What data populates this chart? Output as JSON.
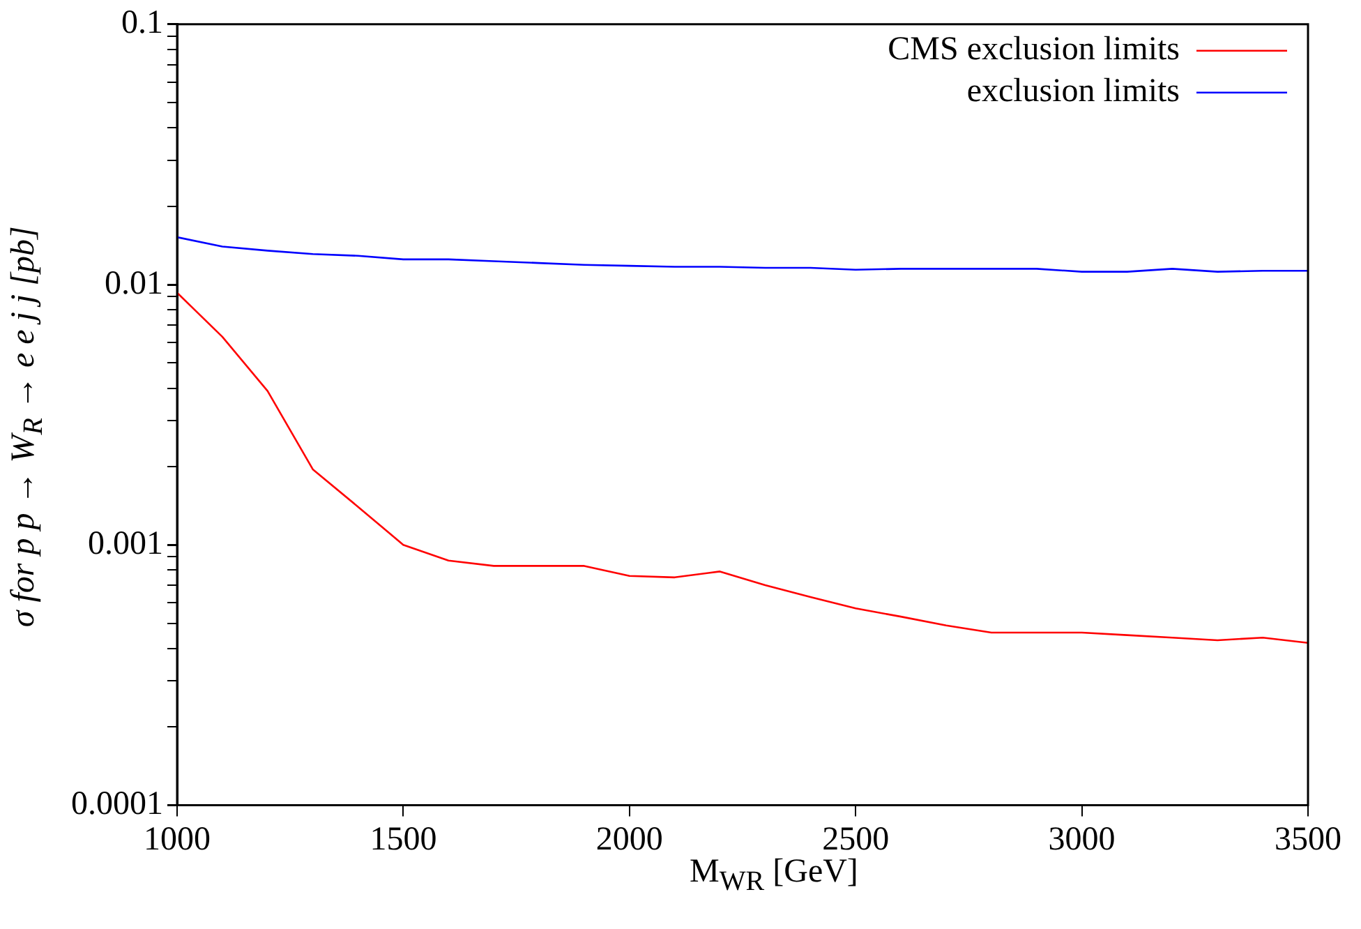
{
  "chart_data": {
    "type": "line",
    "xlabel": "M$_{W}$$_{R}$ [GeV]",
    "ylabel": "σ for p p → W$_{R}$ → e e j j [pb]",
    "x": [
      1000,
      1100,
      1200,
      1300,
      1400,
      1500,
      1600,
      1700,
      1800,
      1900,
      2000,
      2100,
      2200,
      2300,
      2400,
      2500,
      2600,
      2700,
      2800,
      2900,
      3000,
      3100,
      3200,
      3300,
      3400,
      3500
    ],
    "series": [
      {
        "name": "CMS exclusion limits",
        "color": "#ff0000",
        "values": [
          0.0093,
          0.0063,
          0.0039,
          0.00195,
          0.0014,
          0.001,
          0.00087,
          0.00083,
          0.00083,
          0.00083,
          0.00076,
          0.00075,
          0.00079,
          0.0007,
          0.00063,
          0.00057,
          0.00053,
          0.00049,
          0.00046,
          0.00046,
          0.00046,
          0.00045,
          0.00044,
          0.00043,
          0.00044,
          0.00042
        ]
      },
      {
        "name": "exclusion limits",
        "color": "#0000ff",
        "values": [
          0.0152,
          0.014,
          0.0135,
          0.0131,
          0.0129,
          0.0125,
          0.0125,
          0.0123,
          0.0121,
          0.0119,
          0.0118,
          0.0117,
          0.0117,
          0.0116,
          0.0116,
          0.0114,
          0.0115,
          0.0115,
          0.0115,
          0.0115,
          0.0112,
          0.0112,
          0.0115,
          0.0112,
          0.0113,
          0.0113
        ]
      }
    ],
    "xlim": [
      1000,
      3500
    ],
    "xticks": [
      1000,
      1500,
      2000,
      2500,
      3000,
      3500
    ],
    "ylim": [
      0.0001,
      0.1
    ],
    "yticks": [
      0.0001,
      {
        "value": 0.0002,
        "label": null
      },
      {
        "value": 0.0003,
        "label": null
      },
      {
        "value": 0.0004,
        "label": null
      },
      {
        "value": 0.0005,
        "label": null
      },
      {
        "value": 0.0006,
        "label": null
      },
      {
        "value": 0.0007,
        "label": null
      },
      {
        "value": 0.0008,
        "label": null
      },
      {
        "value": 0.0009,
        "label": null
      },
      0.001,
      {
        "value": 0.002,
        "label": null
      },
      {
        "value": 0.003,
        "label": null
      },
      {
        "value": 0.004,
        "label": null
      },
      {
        "value": 0.005,
        "label": null
      },
      {
        "value": 0.006,
        "label": null
      },
      {
        "value": 0.007,
        "label": null
      },
      {
        "value": 0.008,
        "label": null
      },
      {
        "value": 0.009,
        "label": null
      },
      0.01,
      {
        "value": 0.02,
        "label": null
      },
      {
        "value": 0.03,
        "label": null
      },
      {
        "value": 0.04,
        "label": null
      },
      {
        "value": 0.05,
        "label": null
      },
      {
        "value": 0.06,
        "label": null
      },
      {
        "value": 0.07,
        "label": null
      },
      {
        "value": 0.08,
        "label": null
      },
      {
        "value": 0.09,
        "label": null
      },
      0.1
    ],
    "log": true,
    "grid": false,
    "legend": "top right",
    "marker": "none",
    "line_style": "solid"
  }
}
